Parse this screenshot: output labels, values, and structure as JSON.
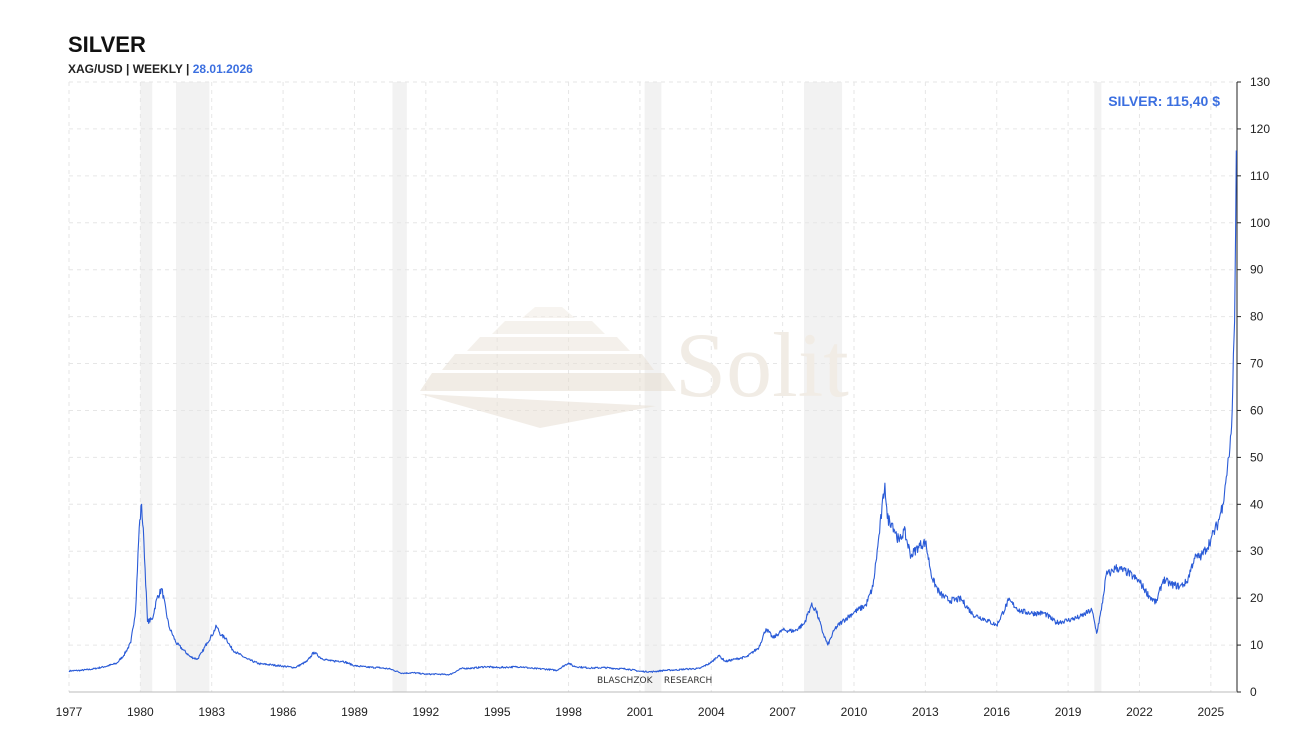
{
  "header": {
    "title": "SILVER",
    "subtitle_prefix": "XAG/USD | WEEKLY |",
    "subtitle_date": "28.01.2026"
  },
  "watermark": {
    "brand": "Solit",
    "footer": "BLASCHZOK    RESEARCH"
  },
  "colors": {
    "line": "#2a5bd7",
    "label": "#3b6fe0",
    "recession": "#f2f2f2",
    "grid": "#e6e6e6"
  },
  "chart_data": {
    "type": "line",
    "title": "SILVER",
    "subtitle": "XAG/USD | WEEKLY | 28.01.2026",
    "xlabel": "",
    "ylabel": "",
    "xlim": [
      1977.0,
      2026.1
    ],
    "ylim": [
      0,
      130
    ],
    "x_ticks": [
      "1977",
      "1980",
      "1983",
      "1986",
      "1989",
      "1992",
      "1995",
      "1998",
      "2001",
      "2004",
      "2007",
      "2010",
      "2013",
      "2016",
      "2019",
      "2022",
      "2025"
    ],
    "y_ticks": [
      0,
      10,
      20,
      30,
      40,
      50,
      60,
      70,
      80,
      90,
      100,
      110,
      120,
      130
    ],
    "grid": true,
    "y_axis_side": "right",
    "last_value_label": "SILVER: 115,40 $",
    "shaded_periods": [
      [
        1980.0,
        1980.5
      ],
      [
        1981.5,
        1982.9
      ],
      [
        1990.6,
        1991.2
      ],
      [
        2001.2,
        2001.9
      ],
      [
        2007.9,
        2009.5
      ],
      [
        2020.1,
        2020.4
      ]
    ],
    "series": [
      {
        "name": "SILVER",
        "x": [
          1977.0,
          1977.5,
          1978.0,
          1978.5,
          1979.0,
          1979.3,
          1979.6,
          1979.8,
          1979.95,
          1980.05,
          1980.15,
          1980.3,
          1980.5,
          1980.7,
          1980.9,
          1981.2,
          1981.5,
          1981.8,
          1982.1,
          1982.4,
          1982.6,
          1982.8,
          1983.0,
          1983.2,
          1983.4,
          1983.6,
          1983.8,
          1984.0,
          1984.5,
          1985.0,
          1985.5,
          1986.0,
          1986.5,
          1987.0,
          1987.3,
          1987.6,
          1988.0,
          1988.5,
          1989.0,
          1989.5,
          1990.0,
          1990.5,
          1991.0,
          1991.5,
          1992.0,
          1992.5,
          1993.0,
          1993.5,
          1994.0,
          1994.5,
          1995.0,
          1995.5,
          1996.0,
          1996.5,
          1997.0,
          1997.5,
          1998.0,
          1998.2,
          1998.5,
          1999.0,
          1999.5,
          2000.0,
          2000.5,
          2001.0,
          2001.5,
          2002.0,
          2002.5,
          2003.0,
          2003.5,
          2004.0,
          2004.3,
          2004.6,
          2005.0,
          2005.5,
          2006.0,
          2006.3,
          2006.6,
          2007.0,
          2007.5,
          2007.9,
          2008.2,
          2008.4,
          2008.7,
          2008.9,
          2009.2,
          2009.5,
          2010.0,
          2010.5,
          2010.8,
          2011.0,
          2011.3,
          2011.4,
          2011.6,
          2011.9,
          2012.1,
          2012.4,
          2012.7,
          2013.0,
          2013.3,
          2013.6,
          2014.0,
          2014.5,
          2015.0,
          2015.5,
          2016.0,
          2016.5,
          2017.0,
          2017.5,
          2018.0,
          2018.5,
          2019.0,
          2019.5,
          2020.0,
          2020.2,
          2020.4,
          2020.6,
          2020.8,
          2021.0,
          2021.5,
          2022.0,
          2022.4,
          2022.7,
          2023.0,
          2023.3,
          2023.7,
          2024.0,
          2024.3,
          2024.6,
          2024.8,
          2025.0,
          2025.3,
          2025.5,
          2025.6,
          2025.7,
          2025.75,
          2025.8,
          2025.85,
          2025.9,
          2025.95,
          2026.0,
          2026.04,
          2026.07
        ],
        "values": [
          4.5,
          4.6,
          4.9,
          5.4,
          6.1,
          7.8,
          10.5,
          17.5,
          35.0,
          40.0,
          32.0,
          15.0,
          15.5,
          20.0,
          22.0,
          14.0,
          10.5,
          9.0,
          7.5,
          7.0,
          8.5,
          10.5,
          12.0,
          14.0,
          12.0,
          11.5,
          9.5,
          8.5,
          7.0,
          6.0,
          5.8,
          5.5,
          5.2,
          6.5,
          8.5,
          7.2,
          6.6,
          6.6,
          5.6,
          5.3,
          5.2,
          4.9,
          4.0,
          4.1,
          3.8,
          3.8,
          3.7,
          5.0,
          5.1,
          5.4,
          5.2,
          5.3,
          5.4,
          5.0,
          4.9,
          4.6,
          6.2,
          5.5,
          5.3,
          5.1,
          5.2,
          5.0,
          4.9,
          4.4,
          4.3,
          4.6,
          4.7,
          4.9,
          5.0,
          6.3,
          7.8,
          6.5,
          7.0,
          7.5,
          9.5,
          13.5,
          11.5,
          13.2,
          13.0,
          14.5,
          18.5,
          17.5,
          12.5,
          10.0,
          13.5,
          15.0,
          17.0,
          18.5,
          22.5,
          31.0,
          44.5,
          37.0,
          36.0,
          32.0,
          34.5,
          29.0,
          31.0,
          32.0,
          24.0,
          21.0,
          19.5,
          19.8,
          16.5,
          15.5,
          14.2,
          19.5,
          17.2,
          16.8,
          16.8,
          14.8,
          15.3,
          16.0,
          17.5,
          12.5,
          17.5,
          25.0,
          25.5,
          26.5,
          25.5,
          23.5,
          20.5,
          19.0,
          24.0,
          23.0,
          22.5,
          23.5,
          28.5,
          29.0,
          30.5,
          32.5,
          36.0,
          40.0,
          44.0,
          48.0,
          50.0,
          52.0,
          55.0,
          60.0,
          72.0,
          79.0,
          98.0,
          115.4
        ]
      }
    ]
  }
}
